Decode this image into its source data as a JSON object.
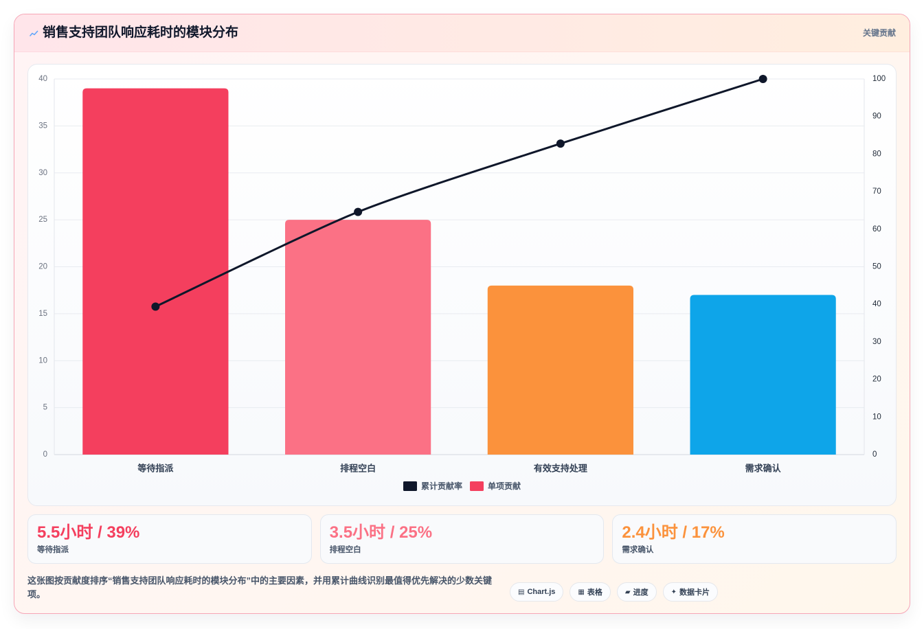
{
  "header": {
    "icon": "trend-spark-icon",
    "icon_color": "#60a5fa",
    "badge": "关键贡献"
  },
  "chart_data": {
    "type": "bar",
    "title": "销售支持团队响应耗时的模块分布",
    "categories": [
      "等待指派",
      "排程空白",
      "有效支持处理",
      "需求确认"
    ],
    "series": [
      {
        "name": "单项贡献",
        "type": "bar",
        "axis": "left",
        "values": [
          39,
          25,
          18,
          17
        ],
        "colors": [
          "#f43f5e",
          "#fb7185",
          "#fb923c",
          "#0ea5e9"
        ]
      },
      {
        "name": "累计贡献率",
        "type": "line",
        "axis": "right",
        "values": [
          39.4,
          64.6,
          82.8,
          100
        ],
        "color": "#0f172a"
      }
    ],
    "y_left": {
      "min": 0,
      "max": 40,
      "ticks": [
        0,
        5,
        10,
        15,
        20,
        25,
        30,
        35,
        40
      ]
    },
    "y_right": {
      "min": 0,
      "max": 100,
      "ticks": [
        0,
        10,
        20,
        30,
        40,
        50,
        60,
        70,
        80,
        90,
        100
      ]
    },
    "grid": true,
    "legend": {
      "position": "bottom",
      "items": [
        {
          "series": 1,
          "color": "#0f172a"
        },
        {
          "series": 0,
          "color": "#f43f5e"
        }
      ]
    }
  },
  "stats": [
    {
      "value": "5.5小时 / 39%",
      "label": "等待指派",
      "color": "#f43f5e"
    },
    {
      "value": "3.5小时 / 25%",
      "label": "排程空白",
      "color": "#fb7185"
    },
    {
      "value": "2.4小时 / 17%",
      "label": "需求确认",
      "color": "#fb923c"
    }
  ],
  "footer": {
    "description": "这张图按贡献度排序“销售支持团队响应耗时的模块分布”中的主要因素，并用累计曲线识别最值得优先解决的少数关键项。",
    "pills": [
      {
        "icon": "chart-icon",
        "glyph": "▤",
        "label": "Chart.js"
      },
      {
        "icon": "table-icon",
        "glyph": "▦",
        "label": "表格"
      },
      {
        "icon": "progress-icon",
        "glyph": "▰",
        "label": "进度"
      },
      {
        "icon": "card-icon",
        "glyph": "✦",
        "label": "数据卡片"
      }
    ]
  }
}
